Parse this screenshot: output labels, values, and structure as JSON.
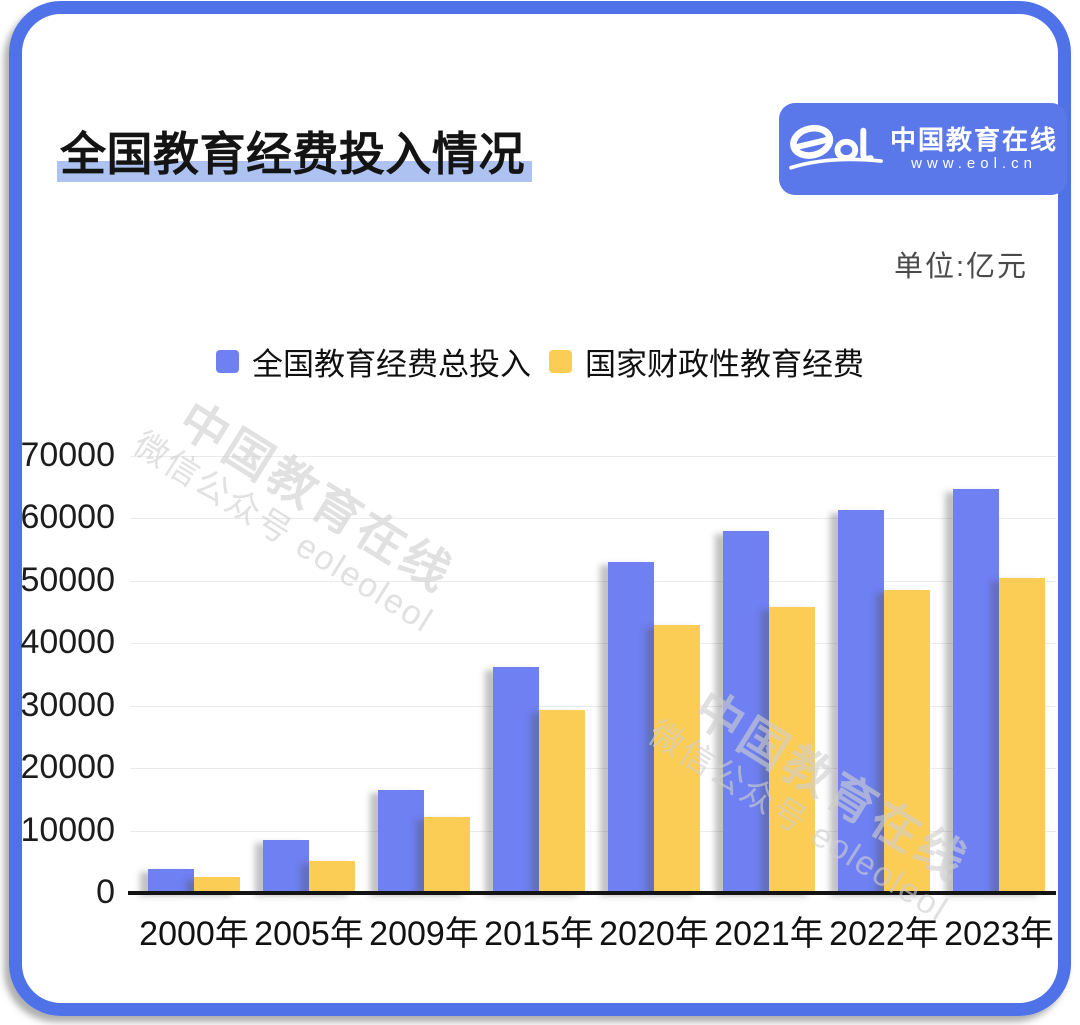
{
  "card": {
    "title": "全国教育经费投入情况",
    "unit_label": "单位:亿元",
    "logo": {
      "brand": "eol",
      "name": "中国教育在线",
      "url": "www.eol.cn"
    },
    "watermark": {
      "line_big": "中国教育在线",
      "line_small": "微信公众号 eoleoleol"
    }
  },
  "colors": {
    "frame_blue": "#4f72e8",
    "badge_blue": "#5b78ea",
    "title_highlight": "#adc2f0",
    "bar_blue": "#6e80f2",
    "bar_yellow": "#fccd55"
  },
  "chart_data": {
    "type": "bar",
    "categories": [
      "2000年",
      "2005年",
      "2009年",
      "2015年",
      "2020年",
      "2021年",
      "2022年",
      "2023年"
    ],
    "series": [
      {
        "name": "全国教育经费总投入",
        "color": "#6e80f2",
        "values": [
          3849,
          8419,
          16503,
          36129,
          53034,
          57874,
          61329,
          64595
        ]
      },
      {
        "name": "国家财政性教育经费",
        "color": "#fccd55",
        "values": [
          2563,
          5161,
          12231,
          29221,
          42908,
          45835,
          48473,
          50433
        ]
      }
    ],
    "title": "全国教育经费投入情况",
    "xlabel": "",
    "ylabel": "单位:亿元",
    "ylim": [
      0,
      70000
    ],
    "yticks": [
      0,
      10000,
      20000,
      30000,
      40000,
      50000,
      60000,
      70000
    ],
    "grid": true,
    "legend_position": "top-center"
  }
}
